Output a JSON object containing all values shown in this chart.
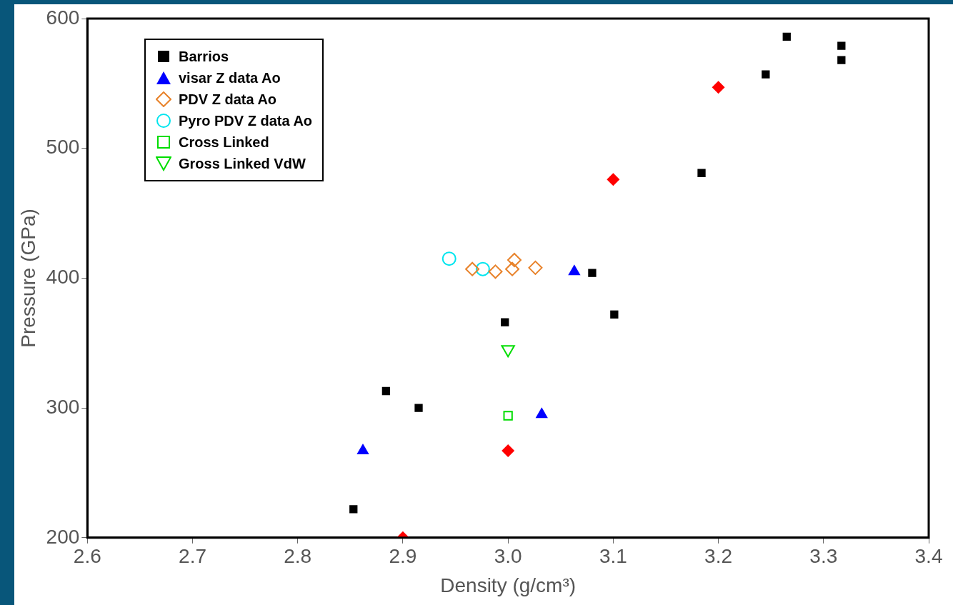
{
  "chart_data": {
    "type": "scatter",
    "xlabel": "Density (g/cm³)",
    "ylabel": "Pressure (GPa)",
    "xlim": [
      2.6,
      3.4
    ],
    "xticks": [
      {
        "value": 2.6,
        "label": "2.6"
      },
      {
        "value": 2.7,
        "label": "2.7"
      },
      {
        "value": 2.8,
        "label": "2.8"
      },
      {
        "value": 2.9,
        "label": "2.9"
      },
      {
        "value": 3.0,
        "label": "3.0"
      },
      {
        "value": 3.1,
        "label": "3.1"
      },
      {
        "value": 3.2,
        "label": "3.2"
      },
      {
        "value": 3.3,
        "label": "3.3"
      },
      {
        "value": 3.4,
        "label": "3.4"
      }
    ],
    "ylim": [
      200,
      600
    ],
    "yticks": [
      200,
      300,
      400,
      500,
      600
    ],
    "grid": false,
    "legend": "top left",
    "series": [
      {
        "name": "Barrios",
        "color": "#000000",
        "marker": "square",
        "x": [
          2.853,
          2.884,
          2.915,
          2.997,
          3.08,
          3.101,
          3.184,
          3.245,
          3.265,
          3.317,
          3.317
        ],
        "values": [
          222,
          313,
          300,
          366,
          404,
          372,
          481,
          557,
          586,
          579,
          568
        ]
      },
      {
        "color": "#ff0000",
        "marker": "diamond",
        "x": [
          2.9,
          3.0,
          3.1,
          3.2
        ],
        "values": [
          200,
          267,
          476,
          547
        ]
      },
      {
        "name": "visar Z data Ao",
        "color": "#0000ff",
        "marker": "triangle",
        "x": [
          2.862,
          3.032,
          3.063
        ],
        "values": [
          267,
          295,
          405
        ]
      },
      {
        "name": "PDV Z data Ao",
        "color": "#e8822a",
        "marker": "diamond-open",
        "x": [
          2.966,
          2.988,
          3.004,
          3.006,
          3.026
        ],
        "values": [
          407,
          405,
          407,
          414,
          408
        ]
      },
      {
        "name": "Pyro PDV Z data Ao",
        "color": "#00e5ee",
        "marker": "circle-open",
        "x": [
          2.944,
          2.976
        ],
        "values": [
          415,
          407
        ]
      },
      {
        "name": "Cross Linked",
        "color": "#00dd00",
        "marker": "square-open",
        "x": [
          3.0
        ],
        "values": [
          294
        ]
      },
      {
        "name": "Gross Linked VdW",
        "color": "#00dd00",
        "marker": "triangle-down-open",
        "x": [
          3.0
        ],
        "values": [
          345
        ]
      }
    ]
  }
}
